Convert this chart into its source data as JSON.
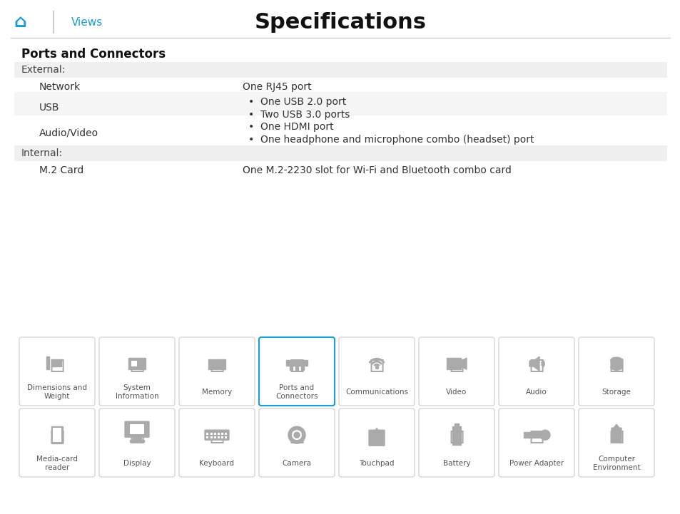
{
  "title": "Specifications",
  "views_text": "Views",
  "section_title": "Ports and Connectors",
  "header_bg": "#f5f5f5",
  "white_bg": "#ffffff",
  "text_color": "#333333",
  "light_gray": "#aaaaaa",
  "table_rows": [
    {
      "type": "section_header",
      "label": "External:"
    },
    {
      "type": "data_row",
      "col1": "Network",
      "col2": "One RJ45 port",
      "bg": "#ffffff",
      "bullet": false
    },
    {
      "type": "data_row",
      "col1": "USB",
      "col2": "One USB 2.0 port\nTwo USB 3.0 ports",
      "bg": "#f5f5f5",
      "bullet": true
    },
    {
      "type": "data_row",
      "col1": "Audio/Video",
      "col2": "One HDMI port\nOne headphone and microphone combo (headset) port",
      "bg": "#ffffff",
      "bullet": true
    },
    {
      "type": "section_header",
      "label": "Internal:"
    },
    {
      "type": "data_row",
      "col1": "M.2 Card",
      "col2": "One M.2-2230 slot for Wi-Fi and Bluetooth combo card",
      "bg": "#ffffff",
      "bullet": false
    }
  ],
  "nav_items_row1": [
    "Dimensions and\nWeight",
    "System\nInformation",
    "Memory",
    "Ports and\nConnectors",
    "Communications",
    "Video",
    "Audio",
    "Storage"
  ],
  "nav_items_row2": [
    "Media-card\nreader",
    "Display",
    "Keyboard",
    "Camera",
    "Touchpad",
    "Battery",
    "Power Adapter",
    "Computer\nEnvironment"
  ],
  "nav_highlight_index_row1": 3,
  "blue_color": "#1a9fd4",
  "icon_color": "#aaaaaa",
  "border_color": "#cccccc"
}
